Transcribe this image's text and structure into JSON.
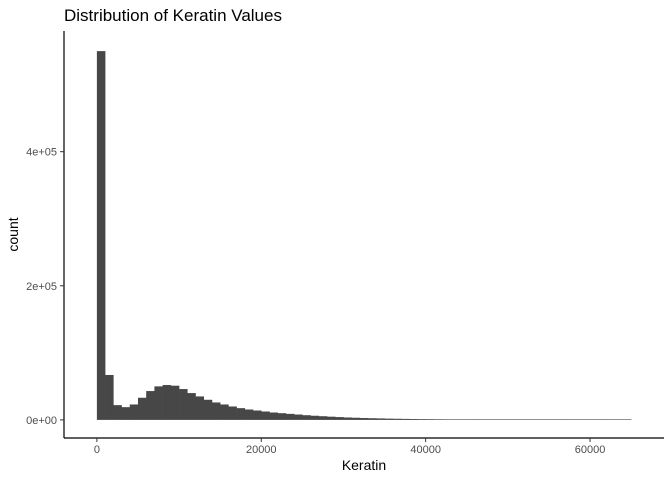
{
  "chart_data": {
    "type": "bar",
    "title": "Distribution of Keratin Values",
    "xlabel": "Keratin",
    "ylabel": "count",
    "xlim": [
      -4000,
      69000
    ],
    "ylim": [
      -27000,
      580000
    ],
    "x_ticks": [
      {
        "value": 0,
        "label": "0"
      },
      {
        "value": 20000,
        "label": "20000"
      },
      {
        "value": 40000,
        "label": "40000"
      },
      {
        "value": 60000,
        "label": "60000"
      }
    ],
    "y_ticks": [
      {
        "value": 0,
        "label": "0e+00"
      },
      {
        "value": 200000,
        "label": "2e+05"
      },
      {
        "value": 400000,
        "label": "4e+05"
      }
    ],
    "grid": false,
    "legend": "none",
    "bar_color": "#474747",
    "bin_width": 1000,
    "bin_start": 500,
    "values": [
      550000,
      67000,
      22000,
      19000,
      23000,
      33000,
      43000,
      50000,
      52000,
      51000,
      46000,
      40000,
      35000,
      30000,
      26000,
      23000,
      20000,
      17500,
      15500,
      14000,
      12500,
      11000,
      10000,
      9000,
      8000,
      7000,
      6200,
      5500,
      4800,
      4200,
      3600,
      3200,
      2800,
      2500,
      2200,
      1900,
      1700,
      1500,
      1350,
      1200,
      1100,
      1000,
      900,
      820,
      750,
      680,
      620,
      560,
      510,
      470,
      430,
      400,
      370,
      340,
      310,
      290,
      270,
      250,
      230,
      210,
      200,
      190,
      180,
      170,
      160
    ]
  }
}
